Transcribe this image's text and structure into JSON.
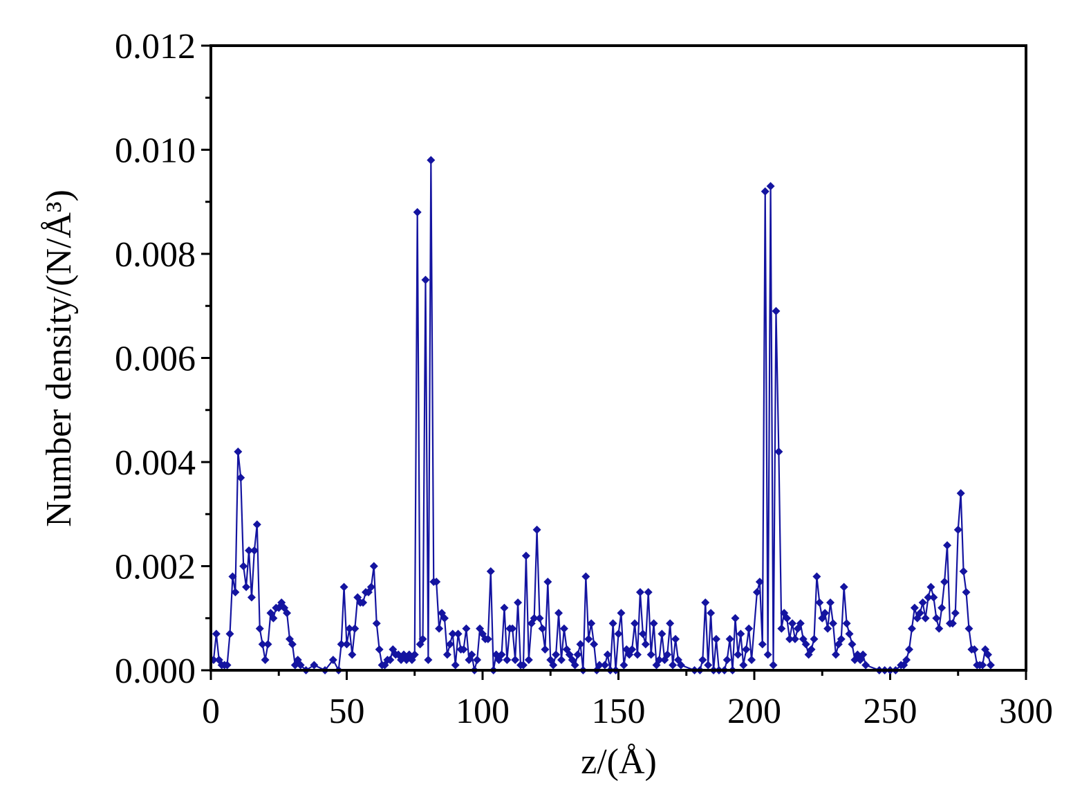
{
  "chart_data": {
    "type": "line",
    "x_label": "z/(Å)",
    "y_label": "Number density/(N/Å³)",
    "color": "#1414a0",
    "marker": "diamond",
    "x": [
      1,
      2,
      3,
      4,
      5,
      6,
      7,
      8,
      9,
      10,
      11,
      12,
      13,
      14,
      15,
      16,
      17,
      18,
      19,
      20,
      21,
      22,
      23,
      24,
      25,
      26,
      27,
      28,
      29,
      30,
      31,
      32,
      33,
      35,
      38,
      42,
      45,
      47,
      48,
      49,
      50,
      51,
      52,
      53,
      54,
      55,
      56,
      57,
      58,
      59,
      60,
      61,
      62,
      63,
      64,
      65,
      66,
      67,
      68,
      69,
      70,
      71,
      72,
      73,
      74,
      75,
      76,
      77,
      78,
      79,
      80,
      81,
      82,
      83,
      84,
      85,
      86,
      87,
      88,
      89,
      90,
      91,
      92,
      93,
      94,
      95,
      96,
      97,
      98,
      99,
      100,
      101,
      102,
      103,
      104,
      105,
      106,
      107,
      108,
      109,
      110,
      111,
      112,
      113,
      114,
      115,
      116,
      117,
      118,
      119,
      120,
      121,
      122,
      123,
      124,
      125,
      126,
      127,
      128,
      129,
      130,
      131,
      132,
      133,
      134,
      135,
      136,
      137,
      138,
      139,
      140,
      141,
      142,
      143,
      145,
      146,
      147,
      148,
      149,
      150,
      151,
      152,
      153,
      154,
      155,
      156,
      157,
      158,
      159,
      160,
      161,
      162,
      163,
      164,
      165,
      166,
      167,
      168,
      169,
      170,
      171,
      172,
      173,
      178,
      180,
      181,
      182,
      183,
      184,
      185,
      186,
      187,
      189,
      190,
      191,
      192,
      193,
      194,
      195,
      196,
      197,
      198,
      199,
      201,
      202,
      203,
      204,
      205,
      206,
      207,
      208,
      209,
      210,
      211,
      212,
      213,
      214,
      215,
      216,
      217,
      218,
      219,
      220,
      221,
      222,
      223,
      224,
      225,
      226,
      227,
      228,
      229,
      230,
      231,
      232,
      233,
      234,
      235,
      236,
      237,
      238,
      239,
      240,
      241,
      246,
      248,
      250,
      252,
      254,
      255,
      256,
      257,
      258,
      259,
      260,
      261,
      262,
      263,
      264,
      265,
      266,
      267,
      268,
      269,
      270,
      271,
      272,
      273,
      274,
      275,
      276,
      277,
      278,
      279,
      280,
      281,
      282,
      283,
      284,
      285,
      286,
      287
    ],
    "values": [
      0.0002,
      0.0007,
      0.0002,
      0.0001,
      0.0001,
      0.0001,
      0.0007,
      0.0018,
      0.0015,
      0.0042,
      0.0037,
      0.002,
      0.0016,
      0.0023,
      0.0014,
      0.0023,
      0.0028,
      0.0008,
      0.0005,
      0.0002,
      0.0005,
      0.0011,
      0.001,
      0.0012,
      0.0012,
      0.0013,
      0.0012,
      0.0011,
      0.0006,
      0.0005,
      0.0001,
      0.0002,
      0.0001,
      0,
      0.0001,
      0,
      0.0002,
      0,
      0.0005,
      0.0016,
      0.0005,
      0.0008,
      0.0003,
      0.0008,
      0.0014,
      0.0013,
      0.0013,
      0.0015,
      0.0015,
      0.0016,
      0.002,
      0.0009,
      0.0004,
      0.0001,
      0.0001,
      0.0002,
      0.0002,
      0.0004,
      0.0003,
      0.0003,
      0.0002,
      0.0003,
      0.0002,
      0.0003,
      0.0002,
      0.0003,
      0.0088,
      0.0005,
      0.0006,
      0.0075,
      0.0002,
      0.0098,
      0.0017,
      0.0017,
      0.0008,
      0.0011,
      0.001,
      0.0003,
      0.0005,
      0.0007,
      0.0001,
      0.0007,
      0.0004,
      0.0004,
      0.0008,
      0.0002,
      0.0003,
      0,
      0.0002,
      0.0008,
      0.0007,
      0.0006,
      0.0006,
      0.0019,
      0,
      0.0003,
      0.0002,
      0.0003,
      0.0012,
      0.0002,
      0.0008,
      0.0008,
      0.0002,
      0.0013,
      0.0001,
      0.0001,
      0.0022,
      0.0002,
      0.0009,
      0.001,
      0.0027,
      0.001,
      0.0008,
      0.0004,
      0.0017,
      0.0002,
      0.0001,
      0.0003,
      0.0011,
      0.0002,
      0.0008,
      0.0004,
      0.0003,
      0.0002,
      0.0001,
      0.0003,
      0.0005,
      0,
      0.0018,
      0.0006,
      0.0009,
      0.0005,
      0,
      0.0001,
      0.0001,
      0.0003,
      0,
      0.0009,
      0,
      0.0007,
      0.0011,
      0.0001,
      0.0004,
      0.0003,
      0.0004,
      0.0009,
      0.0003,
      0.0015,
      0.0007,
      0.0005,
      0.0015,
      0.0003,
      0.0009,
      0.0001,
      0.0002,
      0.0007,
      0.0002,
      0.0003,
      0.0009,
      0.0001,
      0.0006,
      0.0002,
      0.0001,
      0,
      0,
      0.0002,
      0.0013,
      0.0001,
      0.0011,
      0,
      0.0006,
      0,
      0,
      0.0002,
      0.0006,
      0,
      0.001,
      0.0003,
      0.0007,
      0.0001,
      0.0004,
      0.0008,
      0.0002,
      0.0015,
      0.0017,
      0.0005,
      0.0092,
      0.0003,
      0.0093,
      0.0001,
      0.0069,
      0.0042,
      0.0008,
      0.0011,
      0.001,
      0.0006,
      0.0009,
      0.0006,
      0.0008,
      0.0009,
      0.0006,
      0.0005,
      0.0003,
      0.0004,
      0.0006,
      0.0018,
      0.0013,
      0.001,
      0.0011,
      0.0008,
      0.0013,
      0.0009,
      0.0003,
      0.0005,
      0.0006,
      0.0016,
      0.0009,
      0.0007,
      0.0005,
      0.0002,
      0.0003,
      0.0002,
      0.0003,
      0.0001,
      0,
      0,
      0,
      0,
      0.0001,
      0.0001,
      0.0002,
      0.0004,
      0.0008,
      0.0012,
      0.001,
      0.0011,
      0.0013,
      0.001,
      0.0014,
      0.0016,
      0.0014,
      0.001,
      0.0008,
      0.0012,
      0.0017,
      0.0024,
      0.0009,
      0.0009,
      0.0011,
      0.0027,
      0.0034,
      0.0019,
      0.0015,
      0.0008,
      0.0004,
      0.0004,
      0.0001,
      0.0001,
      0.0001,
      0.0004,
      0.0003,
      0.0001
    ],
    "xlim": [
      0,
      300
    ],
    "xticks": [
      0,
      50,
      100,
      150,
      200,
      250,
      300
    ],
    "ylim": [
      0,
      0.012
    ],
    "yticks": [
      {
        "value": 0,
        "label": "0.000"
      },
      {
        "value": 0.002,
        "label": "0.002"
      },
      {
        "value": 0.004,
        "label": "0.004"
      },
      {
        "value": 0.006,
        "label": "0.006"
      },
      {
        "value": 0.008,
        "label": "0.008"
      },
      {
        "value": 0.01,
        "label": "0.010"
      },
      {
        "value": 0.012,
        "label": "0.012"
      }
    ],
    "grid": false
  }
}
